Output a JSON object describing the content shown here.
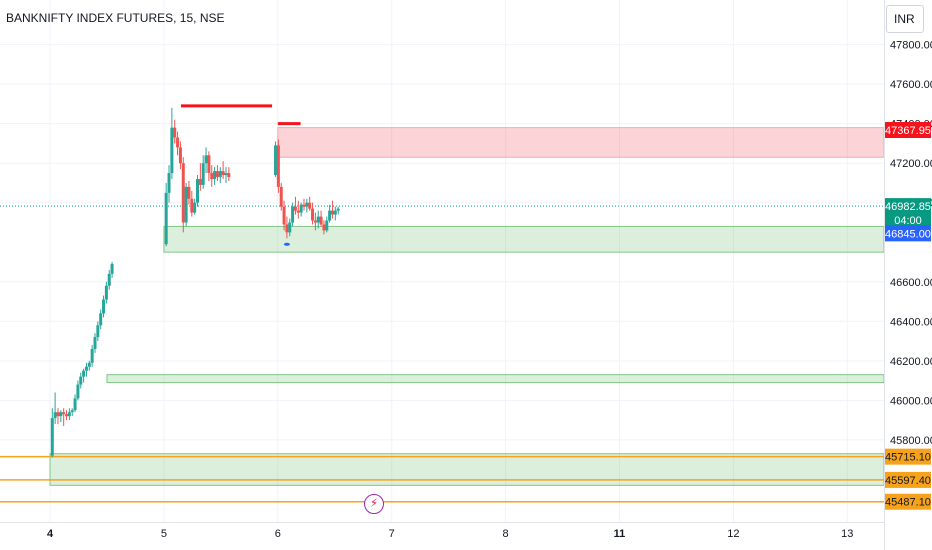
{
  "header": {
    "title": "BANKNIFTY INDEX FUTURES, 15, NSE",
    "currency": "INR"
  },
  "icons": {
    "events": "lightning-icon"
  },
  "colors": {
    "up": "#26a69a",
    "down": "#ef5350",
    "supply_fill": "rgba(242,54,69,0.22)",
    "supply_stroke": "#f7a9a9",
    "demand_fill": "rgba(76,175,80,0.20)",
    "demand_stroke": "#81c784",
    "resistance": "#f7131b",
    "orange": "#f7a21b",
    "grid": "#f0f3fa"
  },
  "chart_data": {
    "type": "candlestick",
    "symbol": "BANKNIFTY INDEX FUTURES",
    "interval": "15",
    "exchange": "NSE",
    "ylim": [
      45430,
      47960
    ],
    "y_ticks": [
      "47800.00",
      "47600.00",
      "47400.00",
      "47200.00",
      "47000.00",
      "46600.00",
      "46400.00",
      "46200.00",
      "46000.00",
      "45800.00"
    ],
    "x_ticks": [
      {
        "label": "4",
        "x": 0,
        "bold": true
      },
      {
        "label": "5",
        "x": 1,
        "bold": false
      },
      {
        "label": "6",
        "x": 2,
        "bold": false
      },
      {
        "label": "7",
        "x": 3,
        "bold": false
      },
      {
        "label": "8",
        "x": 4,
        "bold": false
      },
      {
        "label": "11",
        "x": 5,
        "bold": true
      },
      {
        "label": "12",
        "x": 6,
        "bold": false
      },
      {
        "label": "13",
        "x": 7,
        "bold": false
      }
    ],
    "candles": [
      [
        0.02,
        45720,
        45960,
        45710,
        45910
      ],
      [
        0.045,
        45910,
        46040,
        45880,
        45940
      ],
      [
        0.07,
        45940,
        45960,
        45880,
        45920
      ],
      [
        0.095,
        45920,
        45950,
        45890,
        45940
      ],
      [
        0.12,
        45940,
        45960,
        45870,
        45930
      ],
      [
        0.145,
        45930,
        45950,
        45900,
        45920
      ],
      [
        0.17,
        45920,
        45960,
        45900,
        45940
      ],
      [
        0.195,
        45940,
        45960,
        45920,
        45950
      ],
      [
        0.22,
        45950,
        46030,
        45940,
        46010
      ],
      [
        0.245,
        46010,
        46100,
        46000,
        46080
      ],
      [
        0.27,
        46080,
        46140,
        46060,
        46120
      ],
      [
        0.295,
        46120,
        46160,
        46090,
        46150
      ],
      [
        0.32,
        46150,
        46190,
        46120,
        46170
      ],
      [
        0.345,
        46170,
        46200,
        46150,
        46190
      ],
      [
        0.37,
        46190,
        46280,
        46170,
        46260
      ],
      [
        0.395,
        46260,
        46340,
        46240,
        46320
      ],
      [
        0.42,
        46320,
        46400,
        46300,
        46380
      ],
      [
        0.445,
        46380,
        46460,
        46360,
        46440
      ],
      [
        0.47,
        46440,
        46530,
        46420,
        46510
      ],
      [
        0.495,
        46510,
        46600,
        46490,
        46580
      ],
      [
        0.52,
        46580,
        46660,
        46560,
        46640
      ],
      [
        0.545,
        46640,
        46700,
        46620,
        46690
      ],
      [
        1.02,
        46790,
        47100,
        46780,
        47050
      ],
      [
        1.045,
        47050,
        47190,
        47000,
        47150
      ],
      [
        1.07,
        47150,
        47480,
        47120,
        47380
      ],
      [
        1.095,
        47380,
        47420,
        47300,
        47330
      ],
      [
        1.12,
        47330,
        47360,
        47240,
        47280
      ],
      [
        1.145,
        47280,
        47310,
        47170,
        47200
      ],
      [
        1.17,
        47200,
        47230,
        46850,
        46900
      ],
      [
        1.195,
        46900,
        47100,
        46880,
        47080
      ],
      [
        1.22,
        47080,
        47110,
        46990,
        47020
      ],
      [
        1.245,
        47020,
        47060,
        46930,
        46950
      ],
      [
        1.27,
        46950,
        47020,
        46940,
        47000
      ],
      [
        1.295,
        47000,
        47140,
        46980,
        47120
      ],
      [
        1.32,
        47120,
        47200,
        47060,
        47090
      ],
      [
        1.345,
        47090,
        47240,
        47070,
        47200
      ],
      [
        1.37,
        47200,
        47280,
        47150,
        47240
      ],
      [
        1.395,
        47240,
        47260,
        47110,
        47150
      ],
      [
        1.42,
        47150,
        47190,
        47080,
        47120
      ],
      [
        1.445,
        47120,
        47180,
        47090,
        47160
      ],
      [
        1.47,
        47160,
        47190,
        47110,
        47130
      ],
      [
        1.495,
        47130,
        47180,
        47100,
        47160
      ],
      [
        1.52,
        47160,
        47210,
        47120,
        47140
      ],
      [
        1.545,
        47140,
        47180,
        47100,
        47150
      ],
      [
        1.57,
        47150,
        47180,
        47110,
        47130
      ],
      [
        1.98,
        47140,
        47310,
        47130,
        47290
      ],
      [
        2.005,
        47290,
        47320,
        47050,
        47080
      ],
      [
        2.03,
        47080,
        47100,
        46960,
        46980
      ],
      [
        2.055,
        46980,
        47010,
        46860,
        46890
      ],
      [
        2.08,
        46890,
        46930,
        46820,
        46850
      ],
      [
        2.105,
        46850,
        46920,
        46830,
        46900
      ],
      [
        2.13,
        46900,
        47000,
        46880,
        46980
      ],
      [
        2.155,
        46980,
        47030,
        46940,
        46960
      ],
      [
        2.18,
        46960,
        47010,
        46920,
        46950
      ],
      [
        2.205,
        46950,
        47000,
        46930,
        46990
      ],
      [
        2.23,
        46990,
        47020,
        46960,
        46980
      ],
      [
        2.255,
        46980,
        47020,
        46950,
        47000
      ],
      [
        2.28,
        47000,
        47030,
        46960,
        46970
      ],
      [
        2.305,
        46970,
        47000,
        46890,
        46910
      ],
      [
        2.33,
        46910,
        46950,
        46860,
        46900
      ],
      [
        2.355,
        46900,
        46960,
        46870,
        46930
      ],
      [
        2.38,
        46930,
        46960,
        46880,
        46890
      ],
      [
        2.405,
        46890,
        46910,
        46840,
        46860
      ],
      [
        2.43,
        46860,
        46930,
        46850,
        46910
      ],
      [
        2.455,
        46910,
        46990,
        46900,
        46960
      ],
      [
        2.48,
        46960,
        47010,
        46920,
        46940
      ],
      [
        2.505,
        46940,
        46980,
        46910,
        46960
      ],
      [
        2.53,
        46960,
        46980,
        46940,
        46970
      ]
    ],
    "zones": [
      {
        "kind": "supply",
        "from_x": 2.0,
        "y1": 47230,
        "y2": 47380
      },
      {
        "kind": "demand",
        "from_x": 1.0,
        "y1": 46750,
        "y2": 46880
      },
      {
        "kind": "demand",
        "from_x": 0.5,
        "y1": 46090,
        "y2": 46130
      },
      {
        "kind": "demand",
        "from_x": 0.0,
        "y1": 45570,
        "y2": 45730
      }
    ],
    "resistance_lines": [
      {
        "x1": 1.15,
        "x2": 1.95,
        "y": 47490
      },
      {
        "x1": 2.0,
        "x2": 2.2,
        "y": 47400
      }
    ],
    "horizontal_levels": [
      45715.1,
      45597.4,
      45487.1
    ],
    "last_price": 46982.85,
    "price_labels": [
      {
        "value": 47367.95,
        "text": "47367.95",
        "bg": "#f7131b",
        "color": "#ffffff"
      },
      {
        "value": 46982.85,
        "text": "46982.85",
        "sub": "04:00",
        "bg": "#089981",
        "color": "#ffffff"
      },
      {
        "value": 46845.0,
        "text": "46845.00",
        "bg": "#2962ff",
        "color": "#ffffff"
      },
      {
        "value": 45715.1,
        "text": "45715.10",
        "bg": "#f7a21b",
        "color": "#131722"
      },
      {
        "value": 45597.4,
        "text": "45597.40",
        "bg": "#f7a21b",
        "color": "#131722"
      },
      {
        "value": 45487.1,
        "text": "45487.10",
        "bg": "#f7a21b",
        "color": "#131722"
      }
    ]
  }
}
